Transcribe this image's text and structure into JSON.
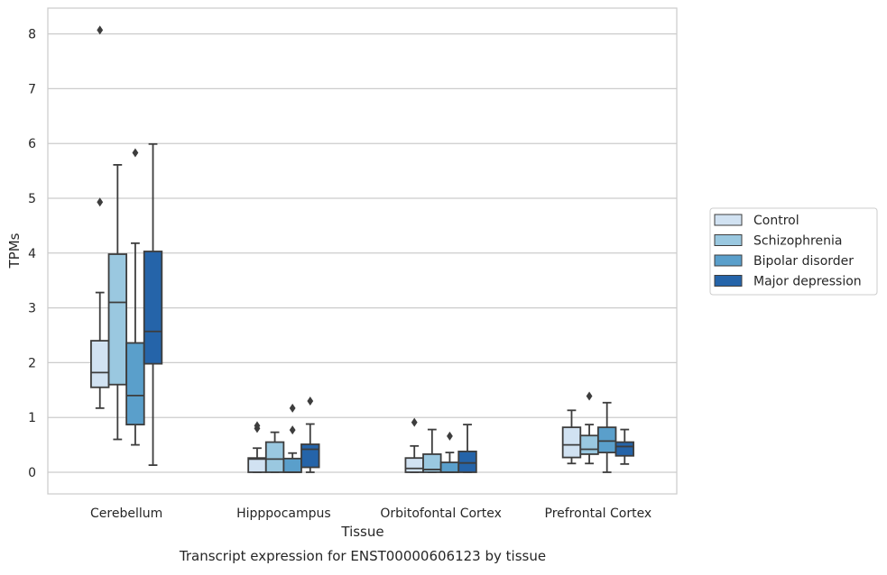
{
  "chart_data": {
    "type": "boxplot",
    "caption": "Transcript expression for ENST00000606123 by tissue",
    "xlabel": "Tissue",
    "ylabel": "TPMs",
    "ylim": [
      -0.4,
      8.5
    ],
    "yticks": [
      "0",
      "1",
      "2",
      "3",
      "4",
      "5",
      "6",
      "7",
      "8"
    ],
    "grid": "horizontal",
    "legend_position": "right-center",
    "categories": [
      "Cerebellum",
      "Hipppocampus",
      "Orbitofontal Cortex",
      "Prefrontal Cortex"
    ],
    "series": [
      {
        "name": "Control",
        "color": "#d1e2f2",
        "boxes": [
          {
            "whislo": 1.17,
            "q1": 1.55,
            "med": 1.82,
            "q3": 2.4,
            "whishi": 3.28,
            "fliers": [
              4.93,
              8.07
            ]
          },
          {
            "whislo": 0.0,
            "q1": 0.0,
            "med": 0.24,
            "q3": 0.26,
            "whishi": 0.44,
            "fliers": [
              0.8,
              0.85
            ]
          },
          {
            "whislo": 0.0,
            "q1": 0.0,
            "med": 0.07,
            "q3": 0.26,
            "whishi": 0.48,
            "fliers": [
              0.91
            ]
          },
          {
            "whislo": 0.16,
            "q1": 0.27,
            "med": 0.5,
            "q3": 0.82,
            "whishi": 1.13,
            "fliers": []
          }
        ]
      },
      {
        "name": "Schizophrenia",
        "color": "#9ac8e0",
        "boxes": [
          {
            "whislo": 0.6,
            "q1": 1.6,
            "med": 3.1,
            "q3": 3.98,
            "whishi": 5.61,
            "fliers": []
          },
          {
            "whislo": 0.0,
            "q1": 0.0,
            "med": 0.24,
            "q3": 0.55,
            "whishi": 0.73,
            "fliers": []
          },
          {
            "whislo": 0.0,
            "q1": 0.0,
            "med": 0.05,
            "q3": 0.33,
            "whishi": 0.78,
            "fliers": []
          },
          {
            "whislo": 0.16,
            "q1": 0.33,
            "med": 0.42,
            "q3": 0.67,
            "whishi": 0.87,
            "fliers": [
              1.39
            ]
          }
        ]
      },
      {
        "name": "Bipolar disorder",
        "color": "#5a9fcb",
        "boxes": [
          {
            "whislo": 0.5,
            "q1": 0.87,
            "med": 1.4,
            "q3": 2.36,
            "whishi": 4.18,
            "fliers": [
              5.83
            ]
          },
          {
            "whislo": 0.0,
            "q1": 0.0,
            "med": 0.0,
            "q3": 0.25,
            "whishi": 0.35,
            "fliers": [
              0.77,
              1.17
            ]
          },
          {
            "whislo": 0.0,
            "q1": 0.0,
            "med": 0.0,
            "q3": 0.18,
            "whishi": 0.36,
            "fliers": [
              0.66
            ]
          },
          {
            "whislo": 0.0,
            "q1": 0.36,
            "med": 0.57,
            "q3": 0.82,
            "whishi": 1.27,
            "fliers": []
          }
        ]
      },
      {
        "name": "Major depression",
        "color": "#2564a9",
        "boxes": [
          {
            "whislo": 0.13,
            "q1": 1.98,
            "med": 2.57,
            "q3": 4.03,
            "whishi": 5.99,
            "fliers": []
          },
          {
            "whislo": 0.0,
            "q1": 0.09,
            "med": 0.42,
            "q3": 0.51,
            "whishi": 0.88,
            "fliers": [
              1.3
            ]
          },
          {
            "whislo": 0.0,
            "q1": 0.0,
            "med": 0.17,
            "q3": 0.38,
            "whishi": 0.87,
            "fliers": []
          },
          {
            "whislo": 0.15,
            "q1": 0.3,
            "med": 0.47,
            "q3": 0.55,
            "whishi": 0.78,
            "fliers": []
          }
        ]
      }
    ]
  }
}
